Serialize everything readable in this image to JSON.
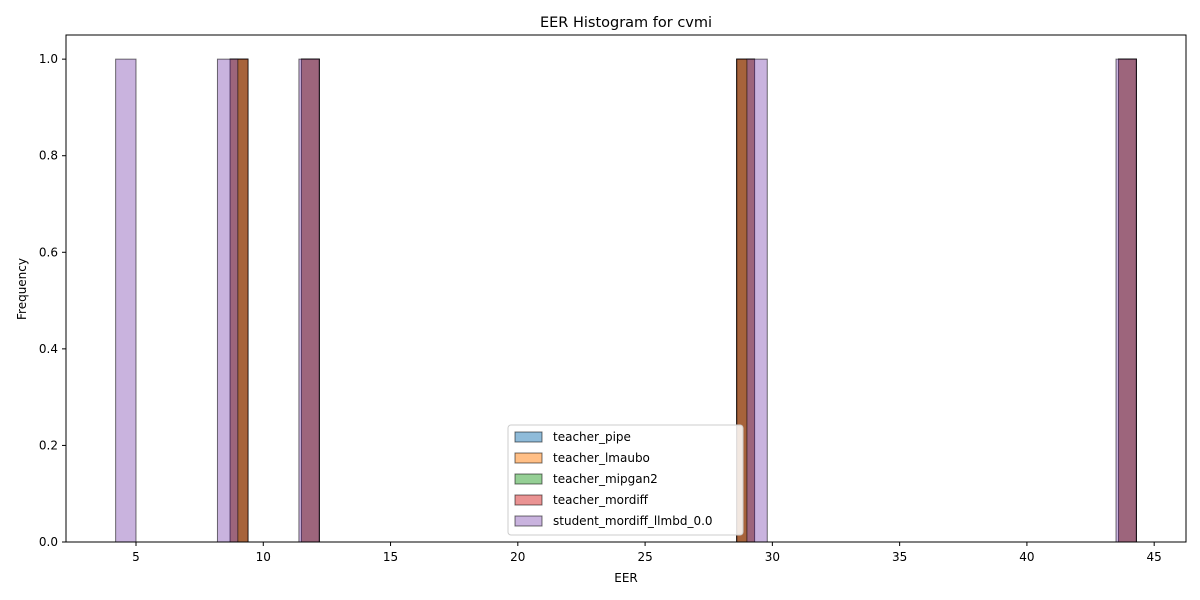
{
  "chart_data": {
    "type": "bar",
    "title": "EER Histogram for cvmi",
    "xlabel": "EER",
    "ylabel": "Frequency",
    "xlim": [
      2.25,
      46.25
    ],
    "ylim": [
      0,
      1.05
    ],
    "x_ticks": [
      5,
      10,
      15,
      20,
      25,
      30,
      35,
      40,
      45
    ],
    "y_ticks": [
      0.0,
      0.2,
      0.4,
      0.6,
      0.8,
      1.0
    ],
    "legend_position": "lower-center",
    "series": [
      {
        "name": "teacher_pipe",
        "color": "#1f77b4",
        "bins": [
          {
            "x0": 8.7,
            "x1": 9.4,
            "value": 1
          },
          {
            "x0": 11.5,
            "x1": 12.2,
            "value": 1
          },
          {
            "x0": 28.6,
            "x1": 29.3,
            "value": 1
          },
          {
            "x0": 43.6,
            "x1": 44.3,
            "value": 1
          }
        ]
      },
      {
        "name": "teacher_lmaubo",
        "color": "#ff7f0e",
        "bins": [
          {
            "x0": 8.7,
            "x1": 9.4,
            "value": 1
          },
          {
            "x0": 11.5,
            "x1": 12.2,
            "value": 1
          },
          {
            "x0": 28.6,
            "x1": 29.3,
            "value": 1
          },
          {
            "x0": 43.6,
            "x1": 44.3,
            "value": 1
          }
        ]
      },
      {
        "name": "teacher_mipgan2",
        "color": "#2ca02c",
        "bins": [
          {
            "x0": 8.7,
            "x1": 9.4,
            "value": 1
          },
          {
            "x0": 11.5,
            "x1": 12.2,
            "value": 1
          },
          {
            "x0": 28.6,
            "x1": 29.3,
            "value": 1
          },
          {
            "x0": 43.6,
            "x1": 44.3,
            "value": 1
          }
        ]
      },
      {
        "name": "teacher_mordiff",
        "color": "#d62728",
        "bins": [
          {
            "x0": 8.7,
            "x1": 9.4,
            "value": 1
          },
          {
            "x0": 11.5,
            "x1": 12.2,
            "value": 1
          },
          {
            "x0": 28.6,
            "x1": 29.3,
            "value": 1
          },
          {
            "x0": 43.6,
            "x1": 44.3,
            "value": 1
          }
        ]
      },
      {
        "name": "student_mordiff_llmbd_0.0",
        "color": "#9467bd",
        "bins": [
          {
            "x0": 4.2,
            "x1": 5.0,
            "value": 1
          },
          {
            "x0": 8.2,
            "x1": 9.0,
            "value": 1
          },
          {
            "x0": 11.4,
            "x1": 12.2,
            "value": 1
          },
          {
            "x0": 29.0,
            "x1": 29.8,
            "value": 1
          },
          {
            "x0": 43.5,
            "x1": 44.3,
            "value": 1
          }
        ]
      }
    ]
  }
}
